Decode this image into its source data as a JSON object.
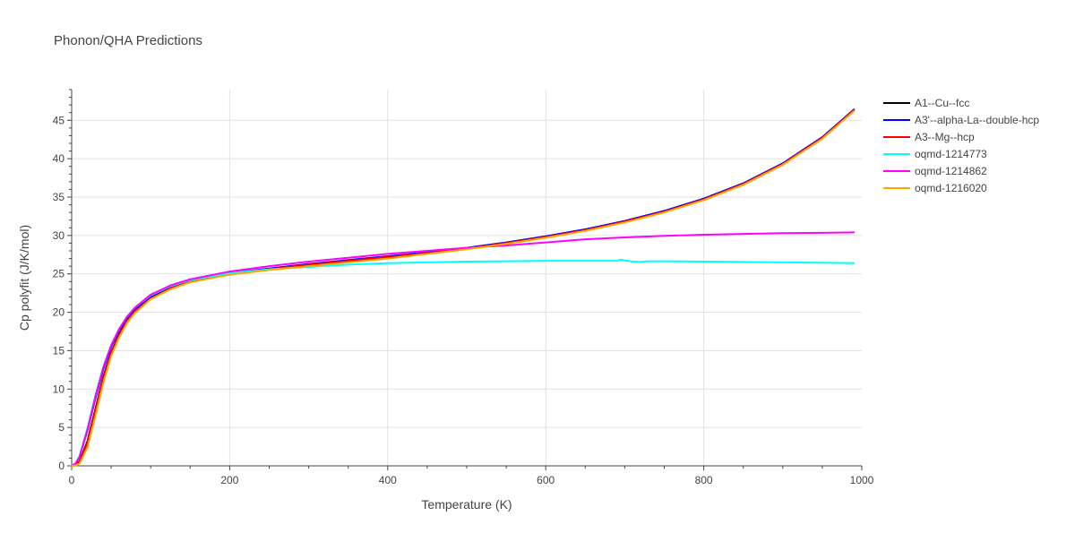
{
  "chart_data": {
    "type": "line",
    "title": "Phonon/QHA Predictions",
    "xlabel": "Temperature (K)",
    "ylabel": "Cp polyfit (J/K/mol)",
    "xlim": [
      0,
      1000
    ],
    "ylim": [
      0,
      49
    ],
    "xticks": [
      0,
      200,
      400,
      600,
      800,
      1000
    ],
    "yticks": [
      0,
      5,
      10,
      15,
      20,
      25,
      30,
      35,
      40,
      45
    ],
    "grid": true,
    "legend_position": "top-right",
    "series": [
      {
        "name": "A1--Cu--fcc",
        "color": "#000000",
        "x": [
          0,
          5,
          10,
          20,
          30,
          40,
          50,
          60,
          70,
          80,
          100,
          125,
          150,
          200,
          250,
          300,
          350,
          400,
          450,
          500,
          550,
          600,
          650,
          700,
          750,
          800,
          850,
          900,
          950,
          990
        ],
        "y": [
          0,
          0.1,
          0.6,
          3.2,
          7.4,
          11.6,
          14.8,
          17.1,
          18.9,
          20.2,
          21.9,
          23.2,
          24.0,
          25.0,
          25.6,
          26.2,
          26.7,
          27.2,
          27.7,
          28.3,
          29.0,
          29.8,
          30.7,
          31.8,
          33.1,
          34.7,
          36.7,
          39.3,
          42.7,
          46.3
        ]
      },
      {
        "name": "A3'--alpha-La--double-hcp",
        "color": "#0000ff",
        "x": [
          0,
          5,
          10,
          20,
          30,
          40,
          50,
          60,
          70,
          80,
          100,
          125,
          150,
          200,
          250,
          300,
          350,
          400,
          450,
          500,
          550,
          600,
          650,
          700,
          750,
          800,
          850,
          900,
          950,
          990
        ],
        "y": [
          0,
          0.3,
          1.2,
          4.6,
          8.8,
          12.6,
          15.5,
          17.6,
          19.2,
          20.4,
          22.0,
          23.3,
          24.1,
          25.1,
          25.7,
          26.3,
          26.8,
          27.3,
          27.8,
          28.4,
          29.1,
          29.9,
          30.8,
          31.9,
          33.2,
          34.8,
          36.8,
          39.4,
          42.8,
          46.4
        ]
      },
      {
        "name": "A3--Mg--hcp",
        "color": "#ff0000",
        "x": [
          0,
          5,
          10,
          20,
          30,
          40,
          50,
          60,
          70,
          80,
          100,
          125,
          150,
          200,
          250,
          300,
          350,
          400,
          450,
          500,
          550,
          600,
          650,
          700,
          750,
          800,
          850,
          900,
          950,
          990
        ],
        "y": [
          0,
          0.1,
          0.5,
          3.0,
          7.2,
          11.4,
          14.7,
          17.0,
          18.8,
          20.1,
          21.8,
          23.1,
          24.0,
          25.0,
          25.6,
          26.2,
          26.7,
          27.2,
          27.7,
          28.3,
          29.0,
          29.8,
          30.7,
          31.8,
          33.1,
          34.7,
          36.7,
          39.3,
          42.7,
          46.3
        ]
      },
      {
        "name": "oqmd-1214773",
        "color": "#00ffff",
        "x": [
          0,
          5,
          10,
          20,
          30,
          40,
          50,
          60,
          70,
          80,
          100,
          125,
          150,
          200,
          250,
          300,
          350,
          400,
          450,
          500,
          550,
          600,
          650,
          690,
          695,
          700,
          710,
          720,
          730,
          750,
          800,
          850,
          900,
          950,
          990
        ],
        "y": [
          0,
          0.3,
          1.3,
          4.9,
          9.2,
          12.9,
          15.7,
          17.8,
          19.4,
          20.6,
          22.2,
          23.4,
          24.2,
          25.1,
          25.6,
          25.9,
          26.2,
          26.4,
          26.5,
          26.6,
          26.65,
          26.7,
          26.7,
          26.7,
          26.85,
          26.75,
          26.6,
          26.55,
          26.65,
          26.65,
          26.6,
          26.55,
          26.5,
          26.45,
          26.4
        ]
      },
      {
        "name": "oqmd-1214862",
        "color": "#ff00ff",
        "x": [
          0,
          5,
          10,
          20,
          30,
          40,
          50,
          60,
          70,
          80,
          100,
          125,
          150,
          200,
          250,
          300,
          350,
          400,
          450,
          500,
          550,
          600,
          650,
          700,
          750,
          800,
          850,
          900,
          950,
          990
        ],
        "y": [
          0,
          0.3,
          1.2,
          4.7,
          9.0,
          12.8,
          15.7,
          17.8,
          19.4,
          20.6,
          22.3,
          23.5,
          24.3,
          25.3,
          26.0,
          26.6,
          27.1,
          27.6,
          28.0,
          28.4,
          28.7,
          29.1,
          29.5,
          29.75,
          29.95,
          30.1,
          30.2,
          30.3,
          30.35,
          30.4
        ]
      },
      {
        "name": "oqmd-1216020",
        "color": "#ffa500",
        "x": [
          0,
          5,
          10,
          20,
          30,
          40,
          50,
          60,
          70,
          80,
          100,
          125,
          150,
          200,
          250,
          300,
          350,
          400,
          450,
          500,
          550,
          600,
          650,
          700,
          750,
          800,
          850,
          900,
          950,
          990
        ],
        "y": [
          0,
          0.05,
          0.3,
          2.4,
          6.5,
          10.8,
          14.3,
          16.7,
          18.6,
          19.9,
          21.7,
          23.0,
          23.9,
          24.9,
          25.5,
          26.0,
          26.5,
          27.0,
          27.6,
          28.2,
          28.9,
          29.7,
          30.6,
          31.7,
          33.0,
          34.6,
          36.6,
          39.2,
          42.6,
          46.2
        ]
      }
    ]
  }
}
